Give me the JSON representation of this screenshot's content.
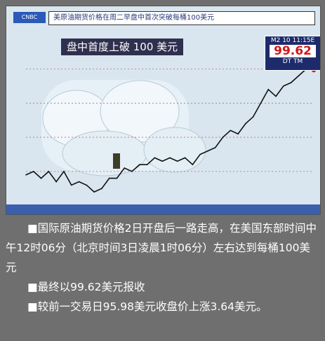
{
  "headline": "盘中首度上破 100 美元",
  "top_title": "美原油期货价格在周二早盘中首次突破每桶100美元",
  "price_box": {
    "label": "M2 10 11:15E",
    "price": "99.62",
    "suffix": "DT TM"
  },
  "paragraphs": [
    "■国际原油期货价格2日开盘后一路走高，在美国东部时间中午12时06分（北京时间3日凌晨1时06分）左右达到每桶100美元",
    "■最终以99.62美元报收",
    "■较前一交易日95.98美元收盘价上涨3.64美元。"
  ],
  "colors": {
    "accent": "#d01818",
    "line": "#111111",
    "panel_bg": "#d9e6ef",
    "text_bg": "#6f6f6f"
  },
  "chart_data": {
    "type": "line",
    "title": "",
    "xlabel": "",
    "ylabel": "",
    "series": [
      {
        "values": [
          69,
          70,
          68,
          70,
          67,
          70,
          66,
          67,
          66,
          64,
          65,
          68,
          68,
          71,
          70,
          72,
          72,
          74,
          73,
          74,
          73,
          74,
          72,
          75,
          76,
          77,
          80,
          82,
          81,
          84,
          86,
          90,
          94,
          92,
          95,
          96,
          98,
          100,
          99.62
        ]
      }
    ],
    "ylim": [
      63,
      104
    ],
    "grid": true
  }
}
